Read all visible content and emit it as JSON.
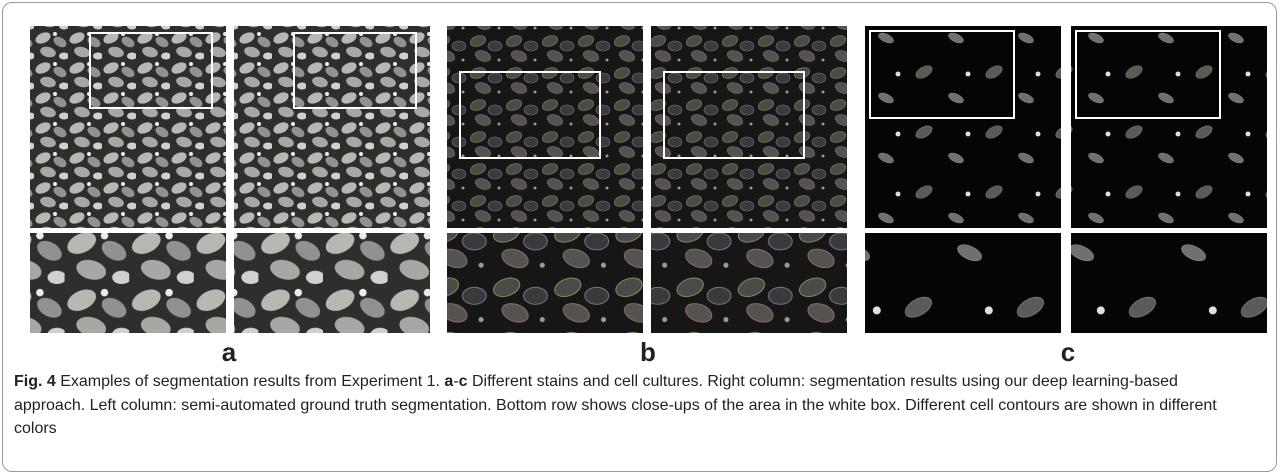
{
  "figure": {
    "panels": [
      {
        "label": "a"
      },
      {
        "label": "b"
      },
      {
        "label": "c"
      }
    ],
    "caption": {
      "label": "Fig. 4",
      "intro": "Examples of segmentation results from Experiment 1.",
      "range_start": "a",
      "range_sep": "-",
      "range_end": "c",
      "body": "Different stains and cell cultures. Right column: segmentation results using our deep learning-based approach. Left column: semi-automated ground truth segmentation. Bottom row shows close-ups of the area in the white box. Different cell contours are shown in different colors"
    }
  }
}
